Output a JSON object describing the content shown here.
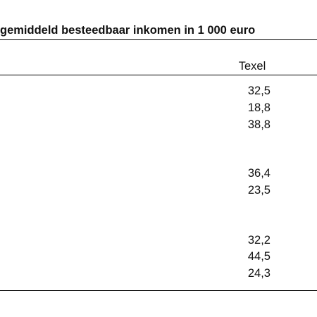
{
  "title": "gemiddeld besteedbaar inkomen in 1 000 euro",
  "column_header": "Texel",
  "values": [
    "32,5",
    "18,8",
    "38,8",
    "36,4",
    "23,5",
    "32,2",
    "44,5",
    "24,3"
  ]
}
